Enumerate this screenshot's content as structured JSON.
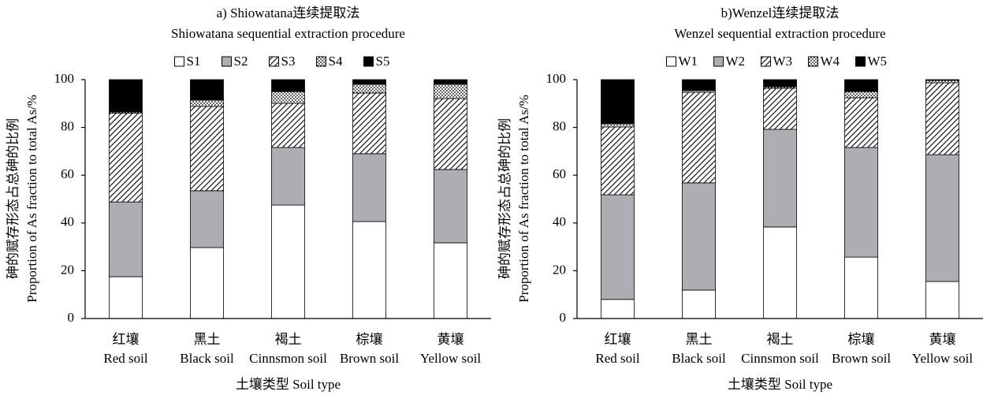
{
  "chart_data": [
    {
      "type": "bar",
      "stacked": true,
      "title": "a) Shiowatana连续提取法",
      "subtitle": "Shiowatana sequential extraction procedure",
      "ylabel": [
        "砷的赋存形态占总砷的比例",
        "Proportion of As fraction to total As/%"
      ],
      "xlabel": "土壤类型 Soil type",
      "categories": [
        [
          "红壤",
          "Red soil"
        ],
        [
          "黑土",
          "Black soil"
        ],
        [
          "褐土",
          "Cinnsmon soil"
        ],
        [
          "棕壤",
          "Brown soil"
        ],
        [
          "黄壤",
          "Yellow soil"
        ]
      ],
      "series": [
        {
          "name": "S1",
          "color": "#ffffff",
          "values": [
            17.5,
            29.7,
            47.5,
            40.6,
            31.7
          ]
        },
        {
          "name": "S2",
          "color": "#adadb3",
          "values": [
            31.3,
            23.8,
            24.1,
            28.4,
            30.7
          ]
        },
        {
          "name": "S3",
          "color": "#000000",
          "pattern": "hatch",
          "values": [
            37.2,
            35.3,
            18.5,
            25.4,
            29.7
          ]
        },
        {
          "name": "S4",
          "color": "#000000",
          "pattern": "dots",
          "values": [
            0.5,
            2.6,
            4.9,
            3.6,
            5.9
          ]
        },
        {
          "name": "S5",
          "color": "#000000",
          "values": [
            13.5,
            8.6,
            5.0,
            2.0,
            2.0
          ]
        }
      ],
      "ylim": [
        0,
        100
      ],
      "yticks": [
        0,
        20,
        40,
        60,
        80,
        100
      ]
    },
    {
      "type": "bar",
      "stacked": true,
      "title": "b)Wenzel连续提取法",
      "subtitle": "Wenzel sequential extraction procedure",
      "ylabel": [
        "砷的赋存形态占总砷的比例",
        "Proportion of As fraction to total As/%"
      ],
      "xlabel": "土壤类型 Soil type",
      "categories": [
        [
          "红壤",
          "Red soil"
        ],
        [
          "黑土",
          "Black soil"
        ],
        [
          "褐土",
          "Cinnsmon soil"
        ],
        [
          "棕壤",
          "Brown soil"
        ],
        [
          "黄壤",
          "Yellow soil"
        ]
      ],
      "series": [
        {
          "name": "W1",
          "color": "#ffffff",
          "values": [
            8.0,
            11.9,
            38.3,
            25.7,
            15.5
          ]
        },
        {
          "name": "W2",
          "color": "#adadb3",
          "values": [
            43.8,
            44.9,
            40.9,
            45.9,
            53.1
          ]
        },
        {
          "name": "W3",
          "color": "#000000",
          "pattern": "hatch",
          "values": [
            28.4,
            37.9,
            17.2,
            20.8,
            30.1
          ]
        },
        {
          "name": "W4",
          "color": "#000000",
          "pattern": "dots",
          "values": [
            1.3,
            0.7,
            0.6,
            2.6,
            1.0
          ]
        },
        {
          "name": "W5",
          "color": "#000000",
          "values": [
            18.5,
            4.6,
            3.0,
            5.0,
            0.3
          ]
        }
      ],
      "ylim": [
        0,
        100
      ],
      "yticks": [
        0,
        20,
        40,
        60,
        80,
        100
      ]
    }
  ]
}
